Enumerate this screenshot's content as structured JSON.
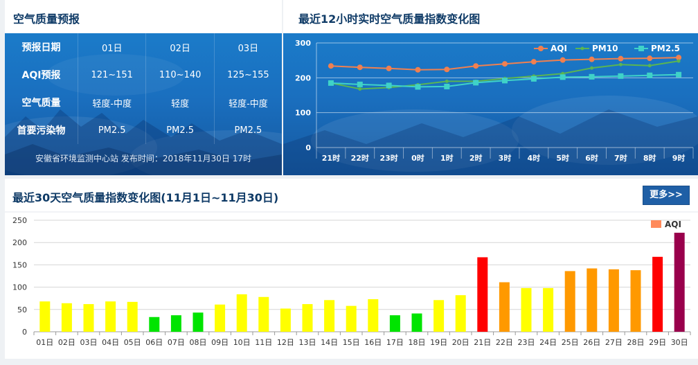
{
  "forecast": {
    "title": "空气质量预报",
    "headers": [
      "预报日期",
      "AQI预报",
      "空气质量",
      "首要污染物"
    ],
    "days": [
      {
        "date": "01日",
        "aqi": "121~151",
        "quality": "轻度-中度",
        "pollutant": "PM2.5"
      },
      {
        "date": "02日",
        "aqi": "110~140",
        "quality": "轻度",
        "pollutant": "PM2.5"
      },
      {
        "date": "03日",
        "aqi": "125~155",
        "quality": "轻度-中度",
        "pollutant": "PM2.5"
      }
    ],
    "footer": "安徽省环境监测中心站 发布时间：2018年11月30日 17时"
  },
  "chart_data": [
    {
      "type": "line",
      "title": "最近12小时实时空气质量指数变化图",
      "categories": [
        "21时",
        "22时",
        "23时",
        "0时",
        "1时",
        "2时",
        "3时",
        "4时",
        "5时",
        "6时",
        "7时",
        "8时",
        "9时"
      ],
      "series": [
        {
          "name": "AQI",
          "color": "#f08050",
          "values": [
            234,
            230,
            227,
            223,
            224,
            234,
            240,
            246,
            251,
            253,
            255,
            256,
            258
          ]
        },
        {
          "name": "PM10",
          "color": "#5ab552",
          "values": [
            185,
            168,
            172,
            180,
            190,
            190,
            198,
            205,
            212,
            228,
            238,
            235,
            248
          ]
        },
        {
          "name": "PM2.5",
          "color": "#3fd2c8",
          "values": [
            185,
            181,
            178,
            174,
            175,
            186,
            192,
            197,
            202,
            203,
            205,
            207,
            209
          ]
        }
      ],
      "ylim": [
        0,
        300
      ],
      "yticks": [
        0,
        100,
        200,
        300
      ],
      "grid": true,
      "legend": "top-right"
    },
    {
      "type": "bar",
      "title": "最近30天空气质量指数变化图(11月1日~11月30日)",
      "categories": [
        "01日",
        "02日",
        "03日",
        "04日",
        "05日",
        "06日",
        "07日",
        "08日",
        "09日",
        "10日",
        "11日",
        "12日",
        "13日",
        "14日",
        "15日",
        "16日",
        "17日",
        "18日",
        "19日",
        "20日",
        "21日",
        "22日",
        "23日",
        "24日",
        "25日",
        "26日",
        "27日",
        "28日",
        "29日",
        "30日"
      ],
      "series": [
        {
          "name": "AQI",
          "color": "#ff8a5b",
          "values": [
            68,
            64,
            62,
            68,
            67,
            33,
            37,
            43,
            61,
            84,
            78,
            52,
            62,
            71,
            58,
            73,
            37,
            41,
            71,
            82,
            167,
            111,
            98,
            98,
            136,
            142,
            140,
            138,
            168,
            222
          ]
        }
      ],
      "bar_colors": [
        "#ffff00",
        "#ffff00",
        "#ffff00",
        "#ffff00",
        "#ffff00",
        "#00e400",
        "#00e400",
        "#00e400",
        "#ffff00",
        "#ffff00",
        "#ffff00",
        "#ffff00",
        "#ffff00",
        "#ffff00",
        "#ffff00",
        "#ffff00",
        "#00e400",
        "#00e400",
        "#ffff00",
        "#ffff00",
        "#ff0000",
        "#ff9900",
        "#ffff00",
        "#ffff00",
        "#ff9900",
        "#ff9900",
        "#ff9900",
        "#ff9900",
        "#ff0000",
        "#99004c"
      ],
      "ylim": [
        0,
        250
      ],
      "yticks": [
        0,
        50,
        100,
        150,
        200,
        250
      ],
      "grid": true,
      "legend": "top-right",
      "more_label": "更多>>"
    }
  ]
}
